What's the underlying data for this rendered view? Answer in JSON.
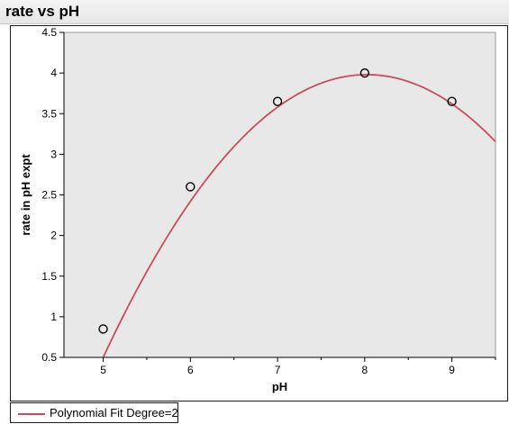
{
  "window": {
    "title": "rate vs pH"
  },
  "chart_data": {
    "type": "scatter",
    "title": "rate vs pH",
    "xlabel": "pH",
    "ylabel": "rate in pH expt",
    "xlim": [
      4.55,
      9.5
    ],
    "ylim": [
      0.5,
      4.5
    ],
    "xticks": [
      "5",
      "6",
      "7",
      "8",
      "9"
    ],
    "yticks": [
      "0.5",
      "1",
      "1.5",
      "2",
      "2.5",
      "3",
      "3.5",
      "4",
      "4.5"
    ],
    "grid": false,
    "points": [
      {
        "x": 5,
        "y": 0.85
      },
      {
        "x": 6,
        "y": 2.6
      },
      {
        "x": 7,
        "y": 3.65
      },
      {
        "x": 8,
        "y": 4.0
      },
      {
        "x": 9,
        "y": 3.65
      }
    ],
    "fit": {
      "name": "Polynomial Fit Degree=2",
      "degree": 2,
      "coefficients": [
        -20.5,
        6.1,
        -0.38
      ],
      "color": "#c94b5e"
    },
    "legend": {
      "position": "bottom-left",
      "entries": [
        "Polynomial Fit Degree=2"
      ]
    },
    "colors": {
      "plot_background": "#e8e8e8",
      "marker_stroke": "#000000",
      "fit_line": "#c94b5e"
    }
  }
}
